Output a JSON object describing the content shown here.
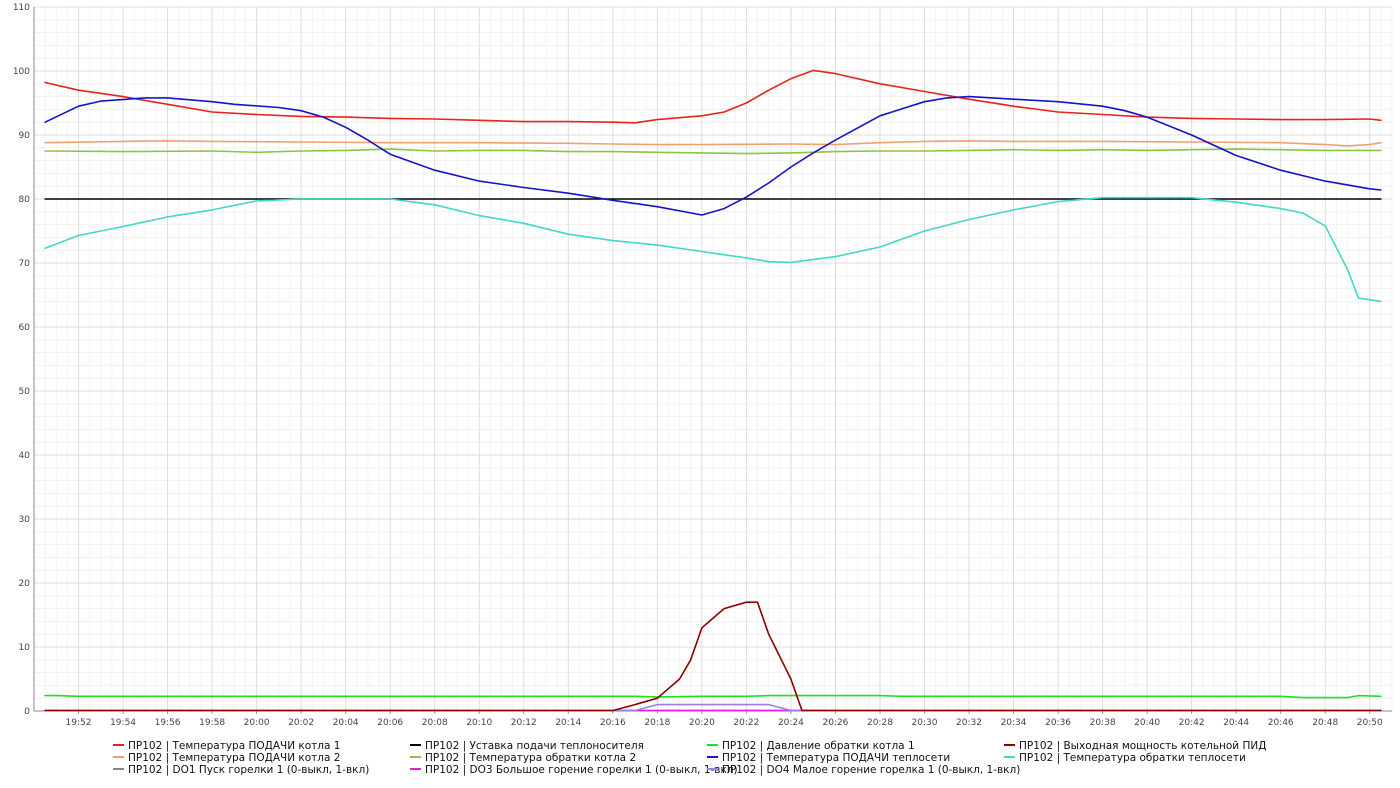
{
  "chart_data": {
    "type": "line",
    "title": "",
    "xlabel": "",
    "ylabel": "",
    "grid": true,
    "legend_position": "bottom",
    "ylim": [
      0,
      110
    ],
    "y_ticks": [
      0,
      10,
      20,
      30,
      40,
      50,
      60,
      70,
      80,
      90,
      100,
      110
    ],
    "x_unit": "minutes",
    "xlim": [
      "19:50",
      "20:51"
    ],
    "x_ticks": [
      "19:52",
      "19:54",
      "19:56",
      "19:58",
      "20:00",
      "20:02",
      "20:04",
      "20:06",
      "20:08",
      "20:10",
      "20:12",
      "20:14",
      "20:16",
      "20:18",
      "20:20",
      "20:22",
      "20:24",
      "20:26",
      "20:28",
      "20:30",
      "20:32",
      "20:34",
      "20:36",
      "20:38",
      "20:40",
      "20:42",
      "20:44",
      "20:46",
      "20:48",
      "20:50"
    ],
    "series": [
      {
        "name": "ПР102 | Температура ПОДАЧИ котла 1",
        "color": "#e8231a",
        "points": [
          [
            "19:50.5",
            98.2
          ],
          [
            "19:52",
            97.0
          ],
          [
            "19:54",
            96.0
          ],
          [
            "19:56",
            94.8
          ],
          [
            "19:58",
            93.6
          ],
          [
            "20:00",
            93.2
          ],
          [
            "20:02",
            92.9
          ],
          [
            "20:04",
            92.8
          ],
          [
            "20:06",
            92.6
          ],
          [
            "20:08",
            92.5
          ],
          [
            "20:10",
            92.3
          ],
          [
            "20:12",
            92.1
          ],
          [
            "20:14",
            92.1
          ],
          [
            "20:16",
            92.0
          ],
          [
            "20:17",
            91.9
          ],
          [
            "20:18",
            92.4
          ],
          [
            "20:20",
            93.0
          ],
          [
            "20:21",
            93.6
          ],
          [
            "20:22",
            95.0
          ],
          [
            "20:23",
            97.0
          ],
          [
            "20:24",
            98.8
          ],
          [
            "20:25",
            100.1
          ],
          [
            "20:26",
            99.6
          ],
          [
            "20:28",
            98.0
          ],
          [
            "20:30",
            96.8
          ],
          [
            "20:32",
            95.6
          ],
          [
            "20:34",
            94.5
          ],
          [
            "20:36",
            93.6
          ],
          [
            "20:38",
            93.2
          ],
          [
            "20:40",
            92.8
          ],
          [
            "20:42",
            92.6
          ],
          [
            "20:44",
            92.5
          ],
          [
            "20:46",
            92.4
          ],
          [
            "20:48",
            92.4
          ],
          [
            "20:50",
            92.5
          ],
          [
            "20:50.5",
            92.3
          ]
        ]
      },
      {
        "name": "ПР102 | Температура ПОДАЧИ котла 2",
        "color": "#f0a070",
        "points": [
          [
            "19:50.5",
            88.8
          ],
          [
            "19:54",
            89.0
          ],
          [
            "19:56",
            89.1
          ],
          [
            "19:58",
            89.0
          ],
          [
            "20:02",
            88.9
          ],
          [
            "20:06",
            88.8
          ],
          [
            "20:10",
            88.8
          ],
          [
            "20:14",
            88.7
          ],
          [
            "20:16",
            88.6
          ],
          [
            "20:18",
            88.5
          ],
          [
            "20:20",
            88.5
          ],
          [
            "20:24",
            88.6
          ],
          [
            "20:26",
            88.5
          ],
          [
            "20:28",
            88.8
          ],
          [
            "20:30",
            89.0
          ],
          [
            "20:32",
            89.1
          ],
          [
            "20:34",
            89.0
          ],
          [
            "20:38",
            89.0
          ],
          [
            "20:42",
            88.9
          ],
          [
            "20:46",
            88.8
          ],
          [
            "20:48",
            88.5
          ],
          [
            "20:49",
            88.3
          ],
          [
            "20:50",
            88.5
          ],
          [
            "20:50.5",
            88.8
          ]
        ]
      },
      {
        "name": "ПР102 | DO1 Пуск горелки 1 (0-выкл, 1-вкл)",
        "color": "#888888",
        "points": [
          [
            "19:50.5",
            0
          ],
          [
            "20:50.5",
            0
          ]
        ]
      },
      {
        "name": "ПР102 | Уставка подачи теплоносителя",
        "color": "#000000",
        "points": [
          [
            "19:50.5",
            80
          ],
          [
            "20:50.5",
            80
          ]
        ]
      },
      {
        "name": "ПР102 | Температура обратки котла 2",
        "color": "#8ac640",
        "points": [
          [
            "19:50.5",
            87.5
          ],
          [
            "19:54",
            87.4
          ],
          [
            "19:58",
            87.5
          ],
          [
            "20:00",
            87.3
          ],
          [
            "20:02",
            87.5
          ],
          [
            "20:04",
            87.6
          ],
          [
            "20:06",
            87.8
          ],
          [
            "20:08",
            87.5
          ],
          [
            "20:10",
            87.6
          ],
          [
            "20:12",
            87.6
          ],
          [
            "20:14",
            87.4
          ],
          [
            "20:16",
            87.4
          ],
          [
            "20:18",
            87.3
          ],
          [
            "20:20",
            87.2
          ],
          [
            "20:22",
            87.1
          ],
          [
            "20:24",
            87.2
          ],
          [
            "20:26",
            87.4
          ],
          [
            "20:28",
            87.5
          ],
          [
            "20:30",
            87.5
          ],
          [
            "20:32",
            87.6
          ],
          [
            "20:34",
            87.7
          ],
          [
            "20:36",
            87.6
          ],
          [
            "20:38",
            87.7
          ],
          [
            "20:40",
            87.6
          ],
          [
            "20:42",
            87.7
          ],
          [
            "20:44",
            87.8
          ],
          [
            "20:46",
            87.7
          ],
          [
            "20:48",
            87.6
          ],
          [
            "20:50.5",
            87.6
          ]
        ]
      },
      {
        "name": "ПР102 | DO3 Большое горение горелки 1 (0-выкл, 1-вкл)",
        "color": "#e020e0",
        "points": [
          [
            "19:50.5",
            0
          ],
          [
            "20:50.5",
            0
          ]
        ]
      },
      {
        "name": "ПР102 | Давление обратки котла 1",
        "color": "#22dd22",
        "points": [
          [
            "19:50.5",
            2.4
          ],
          [
            "19:51",
            2.4
          ],
          [
            "19:52",
            2.3
          ],
          [
            "20:10",
            2.3
          ],
          [
            "20:17",
            2.3
          ],
          [
            "20:18",
            2.2
          ],
          [
            "20:20",
            2.3
          ],
          [
            "20:22",
            2.3
          ],
          [
            "20:23",
            2.4
          ],
          [
            "20:28",
            2.4
          ],
          [
            "20:29",
            2.3
          ],
          [
            "20:46",
            2.3
          ],
          [
            "20:47",
            2.1
          ],
          [
            "20:49",
            2.1
          ],
          [
            "20:49.5",
            2.4
          ],
          [
            "20:50.5",
            2.3
          ]
        ]
      },
      {
        "name": "ПР102 | Температура ПОДАЧИ теплосети",
        "color": "#1414c8",
        "points": [
          [
            "19:50.5",
            92.0
          ],
          [
            "19:52",
            94.5
          ],
          [
            "19:53",
            95.3
          ],
          [
            "19:55",
            95.8
          ],
          [
            "19:56",
            95.8
          ],
          [
            "19:58",
            95.2
          ],
          [
            "19:59",
            94.8
          ],
          [
            "20:01",
            94.3
          ],
          [
            "20:02",
            93.8
          ],
          [
            "20:03",
            92.8
          ],
          [
            "20:04",
            91.2
          ],
          [
            "20:05",
            89.2
          ],
          [
            "20:06",
            87.0
          ],
          [
            "20:08",
            84.5
          ],
          [
            "20:10",
            82.8
          ],
          [
            "20:12",
            81.8
          ],
          [
            "20:14",
            80.9
          ],
          [
            "20:16",
            79.8
          ],
          [
            "20:18",
            78.8
          ],
          [
            "20:20",
            77.5
          ],
          [
            "20:21",
            78.5
          ],
          [
            "20:22",
            80.3
          ],
          [
            "20:23",
            82.5
          ],
          [
            "20:24",
            85.0
          ],
          [
            "20:25",
            87.2
          ],
          [
            "20:26",
            89.2
          ],
          [
            "20:28",
            93.0
          ],
          [
            "20:30",
            95.2
          ],
          [
            "20:31",
            95.8
          ],
          [
            "20:32",
            96.0
          ],
          [
            "20:34",
            95.6
          ],
          [
            "20:36",
            95.2
          ],
          [
            "20:38",
            94.5
          ],
          [
            "20:39",
            93.8
          ],
          [
            "20:40",
            92.8
          ],
          [
            "20:42",
            90.0
          ],
          [
            "20:44",
            86.8
          ],
          [
            "20:46",
            84.5
          ],
          [
            "20:48",
            82.8
          ],
          [
            "20:50",
            81.6
          ],
          [
            "20:50.5",
            81.4
          ]
        ]
      },
      {
        "name": "ПР102 | DO4 Малое горение горелка 1 (0-выкл, 1-вкл)",
        "color": "#9b7fe0",
        "points": [
          [
            "19:50.5",
            0
          ],
          [
            "20:17",
            0
          ],
          [
            "20:18",
            1
          ],
          [
            "20:23",
            1
          ],
          [
            "20:24",
            0
          ],
          [
            "20:50.5",
            0
          ]
        ]
      },
      {
        "name": "ПР102 | Выходная мощность котельной ПИД",
        "color": "#8b0000",
        "points": [
          [
            "19:50.5",
            0
          ],
          [
            "20:16",
            0
          ],
          [
            "20:17",
            1.0
          ],
          [
            "20:18",
            2.0
          ],
          [
            "20:19",
            5.0
          ],
          [
            "20:19.5",
            8.0
          ],
          [
            "20:20",
            13.0
          ],
          [
            "20:21",
            16.0
          ],
          [
            "20:22",
            17.0
          ],
          [
            "20:22.5",
            17.0
          ],
          [
            "20:23",
            12.0
          ],
          [
            "20:24",
            5.0
          ],
          [
            "20:24.5",
            0
          ],
          [
            "20:50.5",
            0
          ]
        ]
      },
      {
        "name": "ПР102 | Температура обратки теплосети",
        "color": "#40d8c8",
        "points": [
          [
            "19:50.5",
            72.3
          ],
          [
            "19:52",
            74.3
          ],
          [
            "19:54",
            75.7
          ],
          [
            "19:56",
            77.2
          ],
          [
            "19:58",
            78.3
          ],
          [
            "20:00",
            79.7
          ],
          [
            "20:02",
            80.0
          ],
          [
            "20:04",
            80.0
          ],
          [
            "20:06",
            80.0
          ],
          [
            "20:08",
            79.1
          ],
          [
            "20:10",
            77.4
          ],
          [
            "20:12",
            76.2
          ],
          [
            "20:14",
            74.5
          ],
          [
            "20:16",
            73.5
          ],
          [
            "20:18",
            72.8
          ],
          [
            "20:20",
            71.8
          ],
          [
            "20:22",
            70.8
          ],
          [
            "20:23",
            70.2
          ],
          [
            "20:24",
            70.1
          ],
          [
            "20:26",
            71.0
          ],
          [
            "20:28",
            72.5
          ],
          [
            "20:30",
            75.0
          ],
          [
            "20:32",
            76.8
          ],
          [
            "20:34",
            78.3
          ],
          [
            "20:36",
            79.6
          ],
          [
            "20:38",
            80.2
          ],
          [
            "20:40",
            80.2
          ],
          [
            "20:42",
            80.2
          ],
          [
            "20:44",
            79.5
          ],
          [
            "20:46",
            78.5
          ],
          [
            "20:47",
            77.8
          ],
          [
            "20:48",
            75.8
          ],
          [
            "20:49",
            69.0
          ],
          [
            "20:49.5",
            64.5
          ],
          [
            "20:50.5",
            64.0
          ]
        ]
      }
    ]
  }
}
